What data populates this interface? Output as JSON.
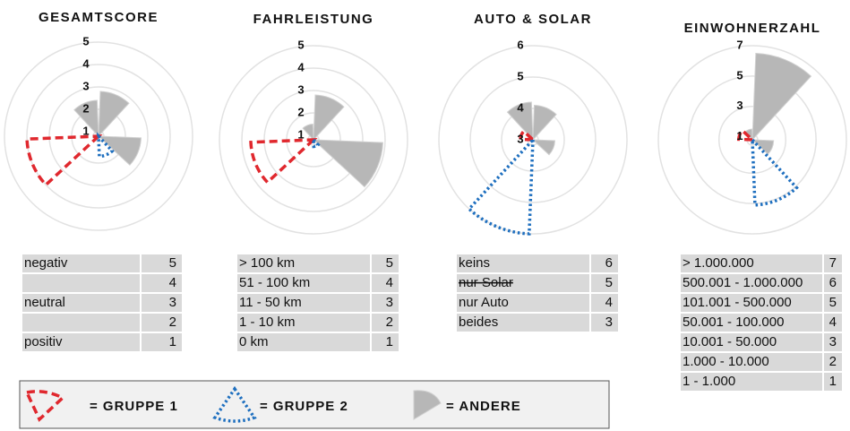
{
  "chart_data": [
    {
      "type": "polar",
      "title": "GESAMTSCORE",
      "rlim": [
        0.8,
        5
      ],
      "rticks": [
        1,
        2,
        3,
        4,
        5
      ],
      "series": [
        {
          "values": [
            null,
            null,
            null,
            null,
            null,
            4.0,
            null,
            null
          ]
        },
        {
          "values": [
            null,
            null,
            null,
            1.7,
            null,
            null,
            null,
            null
          ]
        },
        {
          "values": [
            2.8,
            null,
            2.7,
            null,
            null,
            null,
            null,
            2.4
          ]
        }
      ],
      "table": {
        "rows": [
          [
            "negativ",
            5
          ],
          [
            null,
            4
          ],
          [
            "neutral",
            3
          ],
          [
            null,
            2
          ],
          [
            "positiv",
            1
          ]
        ]
      }
    },
    {
      "type": "polar",
      "title": "FAHRLEISTUNG",
      "rlim": [
        0.8,
        5
      ],
      "rticks": [
        1,
        2,
        3,
        4,
        5
      ],
      "series": [
        {
          "values": [
            null,
            null,
            null,
            null,
            null,
            3.6,
            null,
            null
          ]
        },
        {
          "values": [
            null,
            null,
            null,
            1.1,
            null,
            null,
            null,
            null
          ]
        },
        {
          "values": [
            2.8,
            null,
            3.9,
            null,
            null,
            null,
            null,
            1.5
          ]
        }
      ],
      "table": {
        "rows": [
          [
            "> 100 km",
            5
          ],
          [
            "51 - 100 km",
            4
          ],
          [
            "11 - 50 km",
            3
          ],
          [
            "1 - 10 km",
            2
          ],
          [
            "0 km",
            1
          ]
        ]
      }
    },
    {
      "type": "polar",
      "title": "AUTO & SOLAR",
      "rlim": [
        3,
        6
      ],
      "rticks": [
        3,
        4,
        5,
        6
      ],
      "series": [
        {
          "values": [
            null,
            null,
            null,
            null,
            null,
            null,
            3.4,
            null
          ]
        },
        {
          "values": [
            null,
            null,
            null,
            null,
            6.0,
            null,
            null,
            null
          ]
        },
        {
          "values": [
            4.1,
            null,
            3.7,
            null,
            null,
            null,
            null,
            4.2
          ]
        }
      ],
      "table": {
        "rows": [
          [
            "keins",
            6
          ],
          [
            "nur Solar",
            5
          ],
          [
            "nur Auto",
            4
          ],
          [
            "beides",
            3
          ]
        ],
        "strike_rows": [
          1
        ]
      }
    },
    {
      "type": "polar",
      "title": "EINWOHNERZAHL",
      "rlim": [
        0.8,
        7
      ],
      "rticks": [
        1,
        3,
        5,
        7
      ],
      "series": [
        {
          "values": [
            null,
            null,
            null,
            null,
            null,
            null,
            1.7,
            null
          ]
        },
        {
          "values": [
            null,
            null,
            null,
            5.1,
            null,
            null,
            null,
            null
          ]
        },
        {
          "values": [
            6.5,
            null,
            2.2,
            null,
            null,
            null,
            null,
            1.5
          ]
        }
      ],
      "table": {
        "rows": [
          [
            "> 1.000.000",
            7
          ],
          [
            "500.001 - 1.000.000",
            6
          ],
          [
            "101.001 - 500.000",
            5
          ],
          [
            "50.001 - 100.000",
            4
          ],
          [
            "10.001 - 50.000",
            3
          ],
          [
            "1.000 - 10.000",
            2
          ],
          [
            "1 - 1.000",
            1
          ]
        ]
      }
    }
  ],
  "legend": [
    {
      "label": "= GRUPPE 1",
      "color": "#e0282e",
      "style": "dashed"
    },
    {
      "label": "= GRUPPE 2",
      "color": "#1e6fbf",
      "style": "dotted"
    },
    {
      "label": "= ANDERE",
      "color": "#b7b7b7",
      "style": "filled"
    }
  ]
}
